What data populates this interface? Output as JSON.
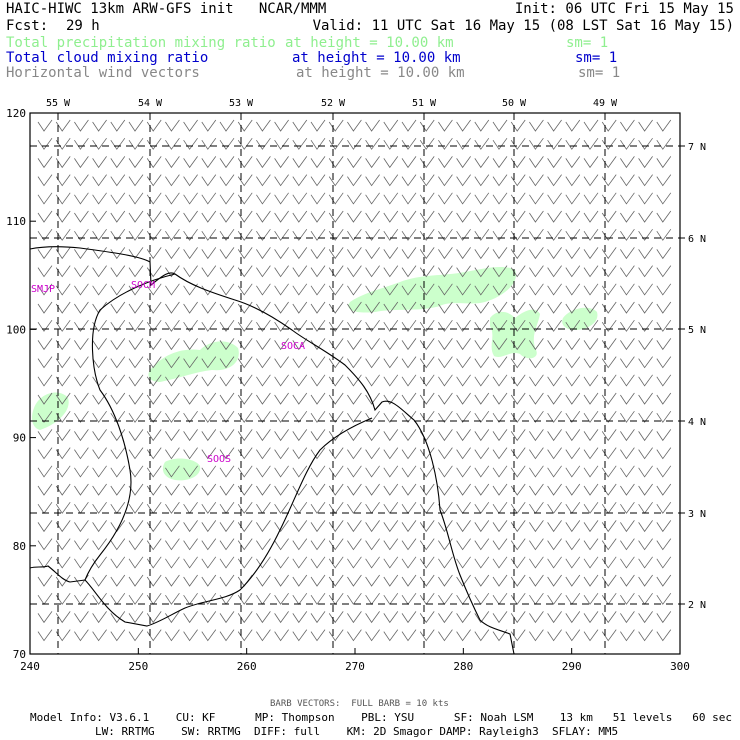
{
  "header": {
    "title": "HAIC-HIWC 13km ARW-GFS init   NCAR/MMM",
    "init": "Init: 06 UTC Fri 15 May 15",
    "fcst_label": "Fcst:",
    "fcst_value": "29 h",
    "valid": "Valid: 11 UTC Sat 16 May 15 (08 LST Sat 16 May 15)",
    "fields": [
      {
        "name": "Total precipitation mixing ratio",
        "height": "at height = 10.00 km",
        "sm": "sm= 1",
        "color": "#8fef8f"
      },
      {
        "name": "Total cloud mixing ratio",
        "height": "at height = 10.00 km",
        "sm": "sm= 1",
        "color": "#0000cc"
      },
      {
        "name": "Horizontal wind vectors",
        "height": "at height = 10.00 km",
        "sm": "sm= 1",
        "color": "#888888"
      }
    ]
  },
  "map": {
    "x_ticks": [
      "240",
      "250",
      "260",
      "270",
      "280",
      "290",
      "300"
    ],
    "y_ticks": [
      "120",
      "110",
      "100",
      "90",
      "80",
      "70"
    ],
    "lon_labels": [
      "55 W",
      "54 W",
      "53 W",
      "52 W",
      "51 W",
      "50 W",
      "49 W"
    ],
    "lat_labels": [
      "7 N",
      "6 N",
      "5 N",
      "4 N",
      "3 N",
      "2 N"
    ],
    "stations": [
      "SMJP",
      "SOCM",
      "SOCA",
      "SOOS"
    ],
    "station_color": "#cc00cc",
    "precip_color": "#ccffcc",
    "coast_color": "#000000",
    "barb_color": "#666666"
  },
  "footer": {
    "barb_note": "BARB VECTORS:  FULL BARB = 10 kts",
    "line1": "Model Info: V3.6.1    CU: KF      MP: Thompson    PBL: YSU      SF: Noah LSM    13 km   51 levels   60 sec",
    "line2": "LW: RRTMG    SW: RRTMG  DIFF: full    KM: 2D Smagor DAMP: Rayleigh3  SFLAY: MM5"
  }
}
